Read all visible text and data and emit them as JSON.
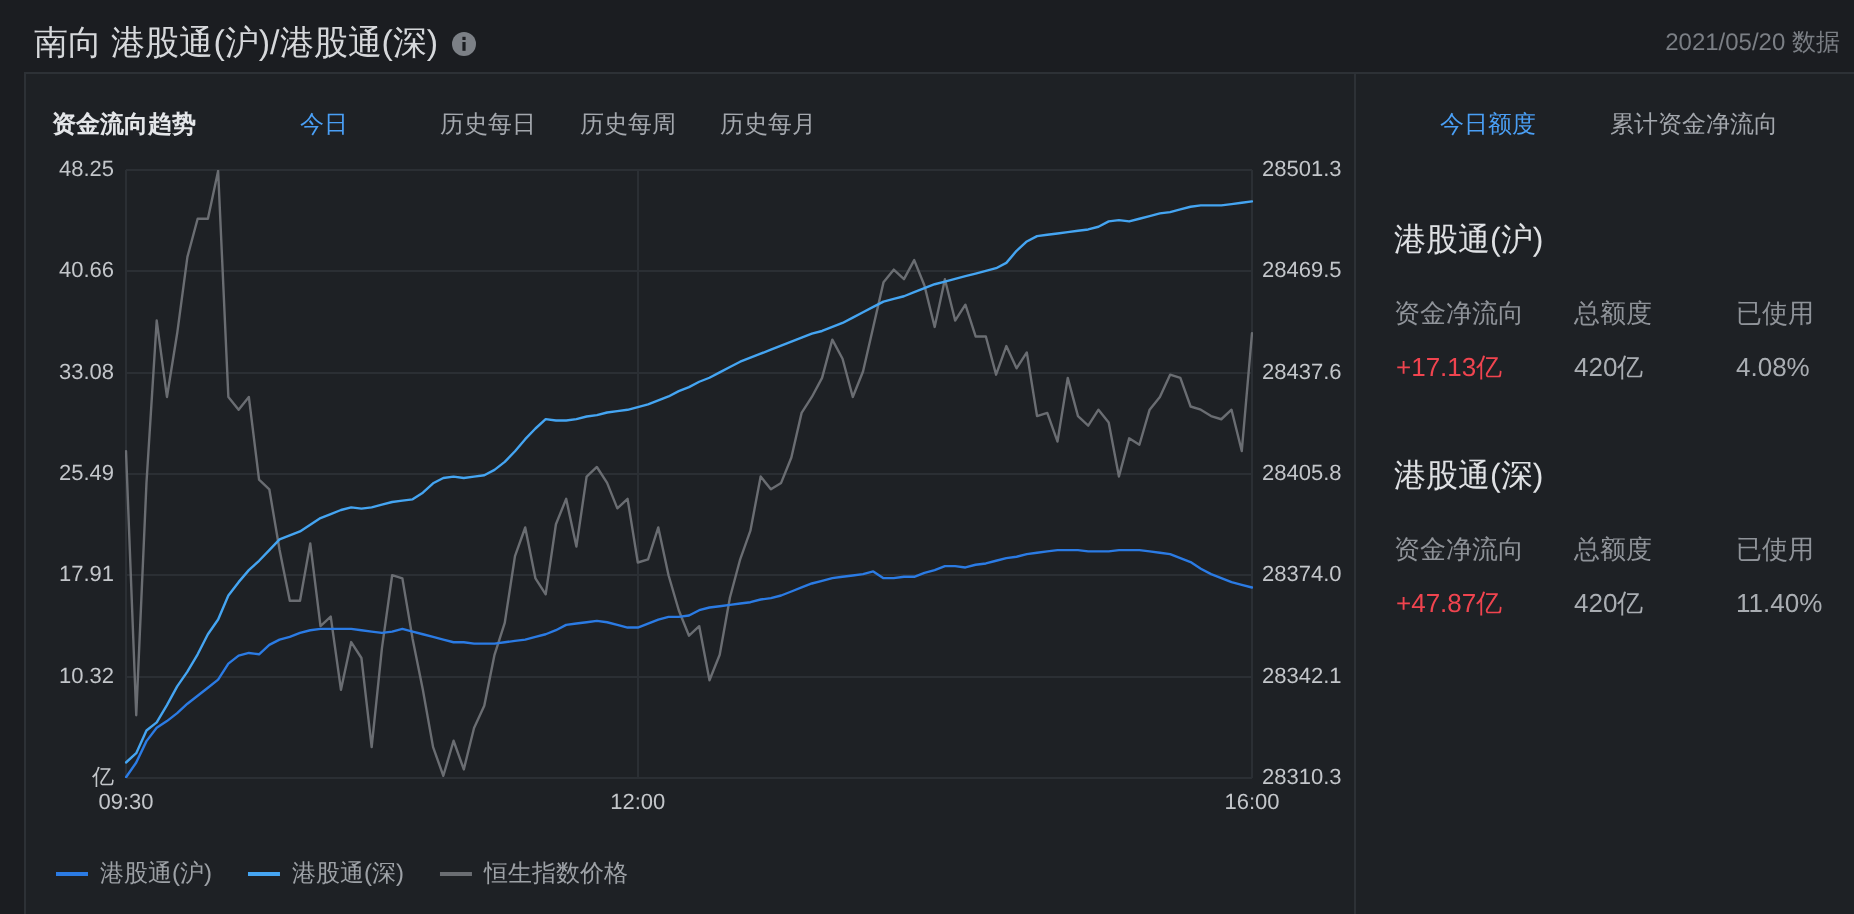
{
  "chart_data": [
    {
      "type": "line",
      "title": "南向 港股通(沪)/港股通(深)",
      "annotations": [
        "资金流向趋势",
        "今日",
        "历史每日",
        "历史每周",
        "历史每月"
      ],
      "categories": [
        "09:30",
        null,
        null,
        null,
        null,
        null,
        null,
        null,
        null,
        null,
        null,
        null,
        null,
        null,
        null,
        null,
        null,
        null,
        null,
        null,
        null,
        null,
        null,
        null,
        null,
        null,
        null,
        null,
        null,
        null,
        null,
        null,
        null,
        null,
        null,
        null,
        null,
        null,
        null,
        null,
        null,
        null,
        null,
        null,
        null,
        null,
        null,
        null,
        null,
        null,
        "12:00",
        null,
        null,
        null,
        null,
        null,
        null,
        null,
        null,
        null,
        null,
        null,
        null,
        null,
        null,
        null,
        null,
        null,
        null,
        null,
        null,
        null,
        null,
        null,
        null,
        null,
        null,
        null,
        null,
        null,
        null,
        null,
        null,
        null,
        null,
        null,
        null,
        null,
        null,
        null,
        null,
        null,
        null,
        null,
        null,
        null,
        null,
        null,
        null,
        null,
        null,
        null,
        null,
        null,
        null,
        null,
        null,
        null,
        null,
        null,
        "16:00"
      ],
      "ylim": [
        2.74,
        48.25
      ],
      "yticks": [
        {
          "value": 2.74,
          "label": "亿"
        },
        10.32,
        17.91,
        25.49,
        33.08,
        40.66,
        48.25
      ],
      "y2lim": [
        28310.3,
        28501.3
      ],
      "y2ticks": [
        28310.3,
        28342.1,
        {
          "value": 28374.0,
          "label": "28374.0"
        },
        28405.8,
        28437.6,
        28469.5,
        28501.3
      ],
      "grid": true,
      "legend": "bottom left",
      "marker": "none",
      "line_style": "solid",
      "series": [
        {
          "name": "港股通(沪)",
          "color": "#2b7be4",
          "values": [
            2.8,
            3.9,
            5.5,
            6.5,
            7.0,
            7.6,
            8.3,
            8.9,
            9.5,
            10.1,
            11.3,
            11.9,
            12.1,
            12.0,
            12.7,
            13.1,
            13.3,
            13.6,
            13.8,
            13.9,
            13.9,
            13.9,
            13.9,
            13.8,
            13.7,
            13.6,
            13.7,
            13.9,
            13.7,
            13.5,
            13.3,
            13.1,
            12.9,
            12.9,
            12.8,
            12.8,
            12.8,
            12.9,
            13.0,
            13.1,
            13.3,
            13.5,
            13.8,
            14.2,
            14.3,
            14.4,
            14.5,
            14.4,
            14.2,
            14.0,
            14.0,
            14.3,
            14.6,
            14.8,
            14.8,
            14.9,
            15.3,
            15.5,
            15.6,
            15.7,
            15.8,
            15.9,
            16.1,
            16.2,
            16.4,
            16.7,
            17.0,
            17.3,
            17.5,
            17.7,
            17.8,
            17.9,
            18.0,
            18.2,
            17.7,
            17.7,
            17.8,
            17.8,
            18.1,
            18.3,
            18.6,
            18.6,
            18.5,
            18.7,
            18.8,
            19.0,
            19.2,
            19.3,
            19.5,
            19.6,
            19.7,
            19.8,
            19.8,
            19.8,
            19.7,
            19.7,
            19.7,
            19.8,
            19.8,
            19.8,
            19.7,
            19.6,
            19.5,
            19.2,
            18.9,
            18.4,
            18.0,
            17.7,
            17.4,
            17.2,
            17.0
          ]
        },
        {
          "name": "港股通(深)",
          "color": "#45a5f2",
          "values": [
            3.9,
            4.6,
            6.3,
            6.9,
            8.2,
            9.6,
            10.7,
            12.0,
            13.5,
            14.6,
            16.4,
            17.4,
            18.3,
            19.0,
            19.8,
            20.6,
            20.9,
            21.2,
            21.7,
            22.2,
            22.5,
            22.8,
            23.0,
            22.9,
            23.0,
            23.2,
            23.4,
            23.5,
            23.6,
            24.1,
            24.8,
            25.2,
            25.3,
            25.2,
            25.3,
            25.4,
            25.8,
            26.4,
            27.2,
            28.1,
            28.9,
            29.6,
            29.5,
            29.5,
            29.6,
            29.8,
            29.9,
            30.1,
            30.2,
            30.3,
            30.5,
            30.7,
            31.0,
            31.3,
            31.7,
            32.0,
            32.4,
            32.7,
            33.1,
            33.5,
            33.9,
            34.2,
            34.5,
            34.8,
            35.1,
            35.4,
            35.7,
            36.0,
            36.2,
            36.5,
            36.8,
            37.2,
            37.6,
            38.0,
            38.4,
            38.6,
            38.8,
            39.1,
            39.4,
            39.7,
            39.9,
            40.1,
            40.3,
            40.5,
            40.7,
            40.9,
            41.3,
            42.2,
            42.9,
            43.3,
            43.4,
            43.5,
            43.6,
            43.7,
            43.8,
            44.0,
            44.4,
            44.5,
            44.4,
            44.6,
            44.8,
            45.0,
            45.1,
            45.3,
            45.5,
            45.6,
            45.6,
            45.6,
            45.7,
            45.8,
            45.9
          ]
        },
        {
          "name": "恒生指数价格",
          "color": "#6a6d72",
          "axis": "y2",
          "values": [
            28413,
            28330,
            28403,
            28454,
            28430,
            28450,
            28474,
            28486,
            28486,
            28501,
            28430,
            28426,
            28430,
            28404,
            28401,
            28382,
            28366,
            28366,
            28384,
            28358,
            28361,
            28338,
            28353,
            28348,
            28320,
            28351,
            28374,
            28373,
            28354,
            28338,
            28320,
            28311,
            28322,
            28313,
            28326,
            28333,
            28349,
            28359,
            28380,
            28389,
            28373,
            28368,
            28390,
            28398,
            28383,
            28405,
            28408,
            28403,
            28395,
            28398,
            28378,
            28379,
            28389,
            28374,
            28363,
            28355,
            28358,
            28341,
            28349,
            28367,
            28379,
            28388,
            28405,
            28401,
            28403,
            28411,
            28425,
            28430,
            28436,
            28448,
            28442,
            28430,
            28438,
            28452,
            28466,
            28470,
            28467,
            28473,
            28465,
            28452,
            28467,
            28454,
            28459,
            28449,
            28449,
            28437,
            28446,
            28439,
            28444,
            28424,
            28425,
            28416,
            28436,
            28424,
            28421,
            28426,
            28422,
            28405,
            28417,
            28415,
            28426,
            28430,
            28437,
            28436,
            28427,
            28426,
            28424,
            28423,
            28426,
            28413,
            28450
          ]
        }
      ]
    },
    {
      "type": "other",
      "subtitle": "2021/05/20 数据",
      "annotations": [
        "今日额度",
        "累计资金净流向",
        "港股通(沪)",
        "资金净流向",
        "总额度",
        "已使用",
        "+17.13亿",
        "420亿",
        "4.08%",
        "港股通(深)",
        "资金净流向",
        "总额度",
        "已使用",
        "+47.87亿",
        "420亿",
        "11.40%"
      ]
    }
  ]
}
